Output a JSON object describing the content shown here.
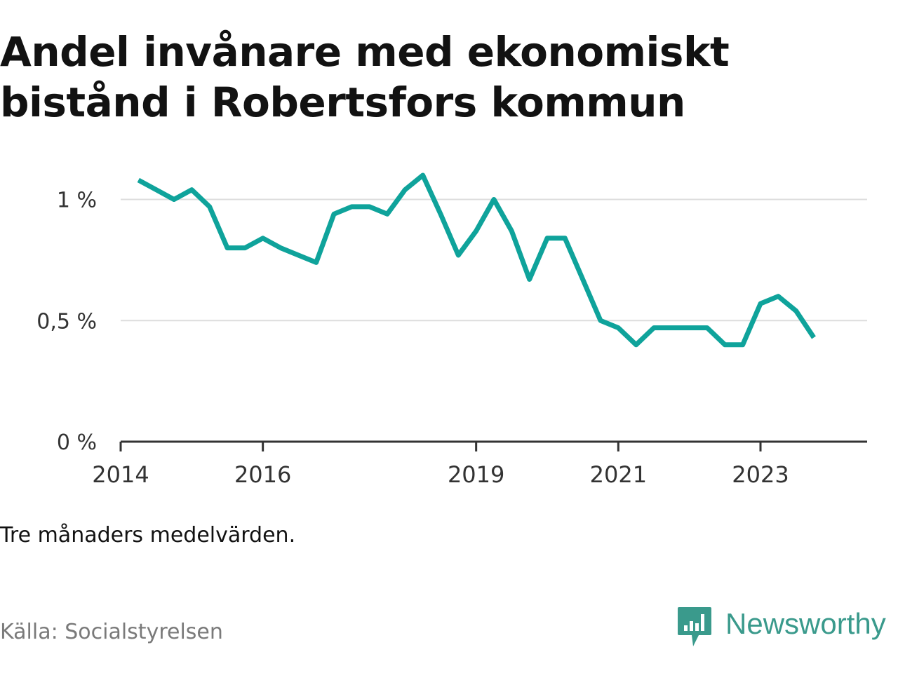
{
  "title": "Andel invånare med ekonomiskt bistånd i Robertsfors kommun",
  "note": "Tre månaders medelvärden.",
  "source": "Källa: Socialstyrelsen",
  "brand": {
    "name": "Newsworthy",
    "icon": "newsworthy-logo-icon",
    "color": "#3a9a8c"
  },
  "chart_data": {
    "type": "line",
    "title": "Andel invånare med ekonomiskt bistånd i Robertsfors kommun",
    "xlabel": "",
    "ylabel": "",
    "ylim": [
      0,
      1.1
    ],
    "xlim": [
      "2014-01",
      "2024-06"
    ],
    "grid": true,
    "line_color": "#0fa39b",
    "x_ticks": [
      "2014",
      "2016",
      "2019",
      "2021",
      "2023"
    ],
    "y_ticks": [
      "0 %",
      "0,5 %",
      "1 %"
    ],
    "y_tick_values": [
      0,
      0.5,
      1
    ],
    "series": [
      {
        "x": [
          "2014-04",
          "2014-07",
          "2014-10",
          "2015-01",
          "2015-04",
          "2015-07",
          "2015-10",
          "2016-01",
          "2016-04",
          "2016-07",
          "2016-10",
          "2017-01",
          "2017-04",
          "2017-07",
          "2017-10",
          "2018-01",
          "2018-04",
          "2018-07",
          "2018-10",
          "2019-01",
          "2019-04",
          "2019-07",
          "2019-10",
          "2020-01",
          "2020-04",
          "2020-07",
          "2020-10",
          "2021-01",
          "2021-04",
          "2021-07",
          "2021-10",
          "2022-01",
          "2022-04",
          "2022-07",
          "2022-10",
          "2023-01",
          "2023-04",
          "2023-07",
          "2023-10"
        ],
        "values": [
          1.08,
          1.04,
          1.0,
          1.04,
          0.97,
          0.8,
          0.8,
          0.84,
          0.8,
          0.77,
          0.74,
          0.94,
          0.97,
          0.97,
          0.94,
          1.04,
          1.1,
          0.94,
          0.77,
          0.87,
          1.0,
          0.87,
          0.67,
          0.84,
          0.84,
          0.67,
          0.5,
          0.47,
          0.4,
          0.47,
          0.47,
          0.47,
          0.47,
          0.4,
          0.4,
          0.57,
          0.6,
          0.54,
          0.43
        ]
      }
    ]
  }
}
